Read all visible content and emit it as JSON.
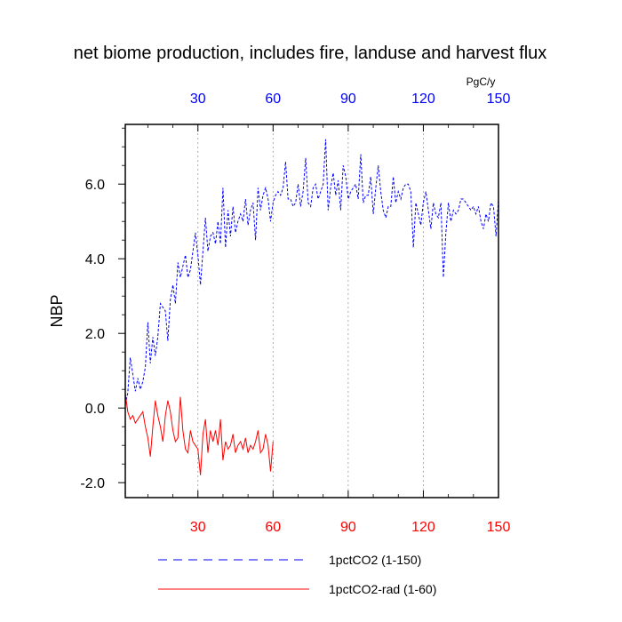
{
  "chart_data": {
    "type": "line",
    "title": "net biome production, includes fire, landuse and harvest flux",
    "ylabel": "NBP",
    "top_axis_unit": "PgC/y",
    "xlim": [
      1,
      150
    ],
    "ylim": [
      -2.4,
      7.6
    ],
    "x_ticks": [
      "30",
      "60",
      "90",
      "120",
      "150"
    ],
    "x_tick_values": [
      30,
      60,
      90,
      120,
      150
    ],
    "y_ticks": [
      "-2.0",
      "0.0",
      "2.0",
      "4.0",
      "6.0"
    ],
    "y_tick_values": [
      -2,
      0,
      2,
      4,
      6
    ],
    "vertical_grid": true,
    "legend_position": "bottom",
    "colors": {
      "series1": "#0000ff",
      "series2": "#ff0000",
      "top_ticks": "#0000ff",
      "bottom_ticks": "#ff0000"
    },
    "series": [
      {
        "name": "1pctCO2 (1-150)",
        "style": "dashed",
        "x": [
          1,
          2,
          3,
          4,
          5,
          6,
          7,
          8,
          9,
          10,
          11,
          12,
          13,
          14,
          15,
          16,
          17,
          18,
          19,
          20,
          21,
          22,
          23,
          24,
          25,
          26,
          27,
          28,
          29,
          30,
          31,
          32,
          33,
          34,
          35,
          36,
          37,
          38,
          39,
          40,
          41,
          42,
          43,
          44,
          45,
          46,
          47,
          48,
          49,
          50,
          51,
          52,
          53,
          54,
          55,
          56,
          57,
          58,
          59,
          60,
          61,
          62,
          63,
          64,
          65,
          66,
          67,
          68,
          69,
          70,
          71,
          72,
          73,
          74,
          75,
          76,
          77,
          78,
          79,
          80,
          81,
          82,
          83,
          84,
          85,
          86,
          87,
          88,
          89,
          90,
          91,
          92,
          93,
          94,
          95,
          96,
          97,
          98,
          99,
          100,
          101,
          102,
          103,
          104,
          105,
          106,
          107,
          108,
          109,
          110,
          111,
          112,
          113,
          114,
          115,
          116,
          117,
          118,
          119,
          120,
          121,
          122,
          123,
          124,
          125,
          126,
          127,
          128,
          129,
          130,
          131,
          132,
          133,
          134,
          135,
          136,
          137,
          138,
          139,
          140,
          141,
          142,
          143,
          144,
          145,
          146,
          147,
          148,
          149,
          150
        ],
        "values": [
          0.1,
          0.4,
          1.35,
          0.9,
          0.45,
          0.8,
          0.5,
          0.7,
          1.1,
          2.3,
          1.2,
          1.9,
          1.4,
          1.9,
          2.8,
          2.7,
          2.6,
          1.8,
          2.9,
          3.3,
          2.8,
          3.9,
          3.5,
          3.8,
          4.1,
          3.5,
          3.7,
          4.2,
          4.7,
          4.1,
          3.3,
          4.2,
          5.1,
          4.2,
          4.6,
          4.7,
          4.4,
          5.0,
          4.4,
          5.9,
          4.3,
          5.3,
          4.6,
          5.4,
          4.7,
          5.0,
          5.2,
          5.0,
          5.6,
          4.9,
          5.3,
          5.5,
          4.5,
          5.9,
          5.3,
          5.7,
          5.9,
          5.6,
          5.0,
          5.5,
          5.7,
          5.8,
          5.7,
          5.9,
          6.6,
          5.6,
          5.6,
          5.4,
          5.5,
          6.0,
          5.4,
          5.8,
          6.7,
          5.5,
          5.4,
          5.9,
          6.0,
          5.6,
          5.8,
          6.0,
          7.2,
          5.3,
          5.9,
          6.3,
          5.7,
          6.1,
          5.3,
          6.5,
          6.2,
          5.6,
          5.8,
          5.9,
          6.0,
          5.6,
          6.8,
          5.5,
          5.7,
          5.7,
          6.2,
          5.2,
          5.9,
          6.5,
          5.8,
          5.3,
          5.1,
          5.4,
          5.4,
          6.2,
          5.5,
          5.8,
          5.6,
          5.9,
          6.0,
          6.0,
          5.8,
          4.3,
          5.5,
          5.2,
          4.9,
          5.5,
          5.8,
          5.3,
          4.8,
          5.5,
          5.2,
          5.1,
          5.5,
          3.5,
          4.7,
          5.5,
          5.0,
          5.3,
          5.2,
          5.3,
          5.6,
          5.6,
          5.5,
          5.4,
          5.3,
          5.4,
          5.2,
          5.4,
          5.0,
          4.8,
          5.2,
          5.0,
          5.5,
          5.4,
          4.6,
          5.6
        ]
      },
      {
        "name": "1pctCO2-rad (1-60)",
        "style": "solid",
        "x": [
          1,
          2,
          3,
          4,
          5,
          6,
          7,
          8,
          9,
          10,
          11,
          12,
          13,
          14,
          15,
          16,
          17,
          18,
          19,
          20,
          21,
          22,
          23,
          24,
          25,
          26,
          27,
          28,
          29,
          30,
          31,
          32,
          33,
          34,
          35,
          36,
          37,
          38,
          39,
          40,
          41,
          42,
          43,
          44,
          45,
          46,
          47,
          48,
          49,
          50,
          51,
          52,
          53,
          54,
          55,
          56,
          57,
          58,
          59,
          60
        ],
        "values": [
          0.4,
          -0.1,
          -0.3,
          -0.2,
          -0.4,
          -0.3,
          -0.2,
          -0.1,
          -0.5,
          -0.8,
          -1.3,
          -0.5,
          0.2,
          -0.2,
          -0.5,
          -0.9,
          -0.2,
          0.2,
          -0.1,
          -0.6,
          -0.9,
          -0.8,
          0.3,
          -0.6,
          -1.1,
          -1.2,
          -0.6,
          -0.9,
          -1.0,
          -1.1,
          -1.8,
          -0.7,
          -0.3,
          -1.2,
          -0.6,
          -0.9,
          -0.6,
          -1.0,
          -0.3,
          -1.4,
          -0.9,
          -1.1,
          -1.0,
          -0.7,
          -1.2,
          -1.0,
          -0.9,
          -1.1,
          -0.8,
          -1.2,
          -1.0,
          -1.1,
          -0.9,
          -0.6,
          -1.2,
          -1.1,
          -0.7,
          -1.0,
          -1.7,
          -0.9
        ]
      }
    ]
  }
}
